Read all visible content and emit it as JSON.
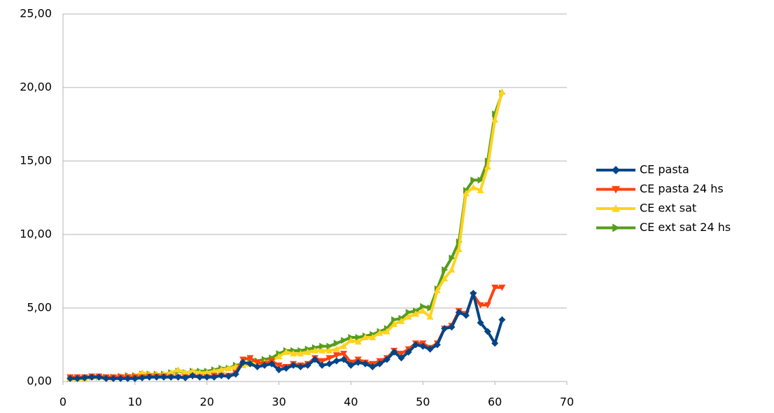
{
  "chart_data": {
    "type": "line",
    "x": [
      1,
      2,
      3,
      4,
      5,
      6,
      7,
      8,
      9,
      10,
      11,
      12,
      13,
      14,
      15,
      16,
      17,
      18,
      19,
      20,
      21,
      22,
      23,
      24,
      25,
      26,
      27,
      28,
      29,
      30,
      31,
      32,
      33,
      34,
      35,
      36,
      37,
      38,
      39,
      40,
      41,
      42,
      43,
      44,
      45,
      46,
      47,
      48,
      49,
      50,
      51,
      52,
      53,
      54,
      55,
      56,
      57,
      58,
      59,
      60,
      61
    ],
    "series": [
      {
        "name": "CE pasta",
        "color": "#004586",
        "marker": "diamond",
        "values": [
          0.2,
          0.2,
          0.25,
          0.3,
          0.3,
          0.2,
          0.2,
          0.2,
          0.2,
          0.2,
          0.25,
          0.3,
          0.3,
          0.3,
          0.3,
          0.3,
          0.25,
          0.4,
          0.3,
          0.3,
          0.3,
          0.4,
          0.35,
          0.5,
          1.3,
          1.2,
          1.0,
          1.1,
          1.2,
          0.8,
          0.9,
          1.1,
          1.0,
          1.1,
          1.5,
          1.1,
          1.2,
          1.4,
          1.5,
          1.1,
          1.3,
          1.2,
          1.0,
          1.2,
          1.5,
          2.0,
          1.6,
          2.0,
          2.5,
          2.4,
          2.2,
          2.5,
          3.6,
          3.7,
          4.7,
          4.5,
          6.0,
          4.0,
          3.4,
          2.6,
          4.2
        ]
      },
      {
        "name": "CE pasta 24 hs",
        "color": "#ff420e",
        "marker": "triangle-down",
        "values": [
          0.3,
          0.3,
          0.3,
          0.35,
          0.35,
          0.3,
          0.3,
          0.3,
          0.3,
          0.3,
          0.3,
          0.35,
          0.35,
          0.35,
          0.3,
          0.3,
          0.3,
          0.35,
          0.3,
          0.3,
          0.4,
          0.4,
          0.4,
          0.6,
          1.5,
          1.6,
          1.3,
          1.2,
          1.4,
          1.1,
          1.0,
          1.2,
          1.1,
          1.2,
          1.6,
          1.4,
          1.6,
          1.8,
          1.9,
          1.3,
          1.5,
          1.3,
          1.2,
          1.4,
          1.6,
          2.1,
          1.9,
          2.2,
          2.6,
          2.6,
          2.3,
          2.6,
          3.6,
          3.8,
          4.8,
          4.6,
          5.9,
          5.2,
          5.2,
          6.4,
          6.4
        ]
      },
      {
        "name": "CE ext sat",
        "color": "#ffd320",
        "marker": "triangle-up",
        "values": [
          0.2,
          0.2,
          0.2,
          0.3,
          0.3,
          0.3,
          0.3,
          0.35,
          0.35,
          0.4,
          0.6,
          0.5,
          0.5,
          0.5,
          0.6,
          0.8,
          0.6,
          0.7,
          0.6,
          0.6,
          0.7,
          0.8,
          0.9,
          1.0,
          1.1,
          1.2,
          1.3,
          1.3,
          1.4,
          1.7,
          2.0,
          1.9,
          1.9,
          2.0,
          2.1,
          2.1,
          2.1,
          2.2,
          2.4,
          2.8,
          2.7,
          3.0,
          3.0,
          3.3,
          3.4,
          3.9,
          4.1,
          4.4,
          4.6,
          4.8,
          4.4,
          6.2,
          7.0,
          7.6,
          9.0,
          12.8,
          13.2,
          13.0,
          14.6,
          17.8,
          19.7
        ]
      },
      {
        "name": "CE ext sat 24 hs",
        "color": "#579d1c",
        "marker": "triangle-right",
        "values": [
          0.2,
          0.2,
          0.25,
          0.3,
          0.3,
          0.3,
          0.3,
          0.35,
          0.4,
          0.4,
          0.5,
          0.5,
          0.5,
          0.5,
          0.6,
          0.7,
          0.6,
          0.7,
          0.7,
          0.7,
          0.8,
          0.9,
          0.9,
          1.1,
          1.2,
          1.3,
          1.4,
          1.5,
          1.6,
          1.9,
          2.1,
          2.1,
          2.1,
          2.2,
          2.3,
          2.4,
          2.4,
          2.6,
          2.8,
          3.0,
          3.0,
          3.1,
          3.2,
          3.4,
          3.6,
          4.2,
          4.3,
          4.7,
          4.8,
          5.1,
          5.0,
          6.3,
          7.6,
          8.4,
          9.5,
          13.0,
          13.7,
          13.7,
          15.0,
          18.2,
          19.6
        ]
      }
    ],
    "xlim": [
      0,
      70
    ],
    "xticks": [
      0,
      10,
      20,
      30,
      40,
      50,
      60,
      70
    ],
    "ylim": [
      0,
      25
    ],
    "yticks": [
      {
        "value": 0,
        "label": "0,00"
      },
      {
        "value": 5,
        "label": "5,00"
      },
      {
        "value": 10,
        "label": "10,00"
      },
      {
        "value": 15,
        "label": "15,00"
      },
      {
        "value": 20,
        "label": "20,00"
      },
      {
        "value": 25,
        "label": "25,00"
      }
    ],
    "grid": true,
    "legend": "right"
  }
}
